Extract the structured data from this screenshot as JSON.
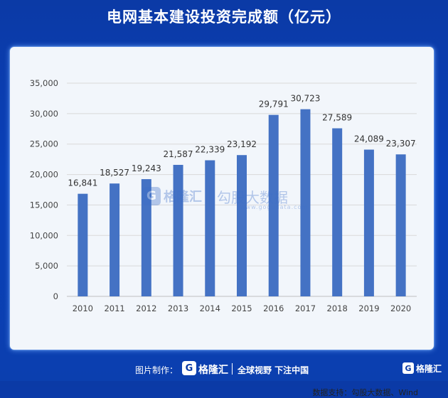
{
  "chart_data": {
    "type": "bar",
    "title": "电网基本建设投资完成额（亿元）",
    "categories": [
      "2010",
      "2011",
      "2012",
      "2013",
      "2014",
      "2015",
      "2016",
      "2017",
      "2018",
      "2019",
      "2020"
    ],
    "values": [
      16841,
      18527,
      19243,
      21587,
      22339,
      23192,
      29791,
      30723,
      27589,
      24089,
      23307
    ],
    "value_labels": [
      "16,841",
      "18,527",
      "19,243",
      "21,587",
      "22,339",
      "23,192",
      "29,791",
      "30,723",
      "27,589",
      "24,089",
      "23,307"
    ],
    "yticks": [
      "0",
      "5,000",
      "10,000",
      "15,000",
      "20,000",
      "25,000",
      "30,000",
      "35,000"
    ],
    "ylim": [
      0,
      35000
    ],
    "xlabel": "",
    "ylabel": "",
    "grid": true,
    "bar_color": "#4472c4"
  },
  "watermark": {
    "logo_letter": "G",
    "brand": "格隆汇",
    "partner": "勾股大数据",
    "url": "www.gogudata.com"
  },
  "source_text": "数据支持：勾股大数据、Wind",
  "footer": {
    "made_by_label": "图片制作：",
    "logo_letter": "G",
    "brand": "格隆汇",
    "slogan": "全球视野 下注中国",
    "corner_brand": "格隆汇"
  }
}
